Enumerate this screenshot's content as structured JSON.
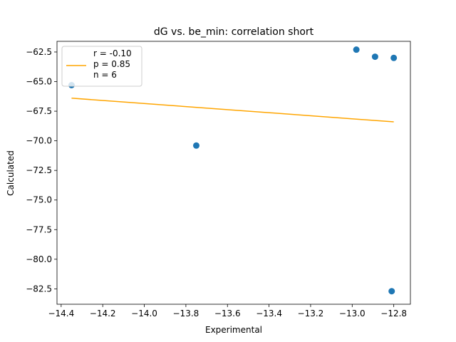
{
  "chart_data": {
    "type": "scatter",
    "title": "dG vs. be_min: correlation short",
    "xlabel": "Experimental",
    "ylabel": "Calculated",
    "xlim": [
      -14.42,
      -12.72
    ],
    "ylim": [
      -83.8,
      -61.6
    ],
    "xticks": [
      -14.4,
      -14.2,
      -14.0,
      -13.8,
      -13.6,
      -13.4,
      -13.2,
      -13.0,
      -12.8
    ],
    "xtick_labels": [
      "−14.4",
      "−14.2",
      "−14.0",
      "−13.8",
      "−13.6",
      "−13.4",
      "−13.2",
      "−13.0",
      "−12.8"
    ],
    "yticks": [
      -62.5,
      -65.0,
      -67.5,
      -70.0,
      -72.5,
      -75.0,
      -77.5,
      -80.0,
      -82.5
    ],
    "ytick_labels": [
      "−62.5",
      "−65.0",
      "−67.5",
      "−70.0",
      "−72.5",
      "−75.0",
      "−77.5",
      "−80.0",
      "−82.5"
    ],
    "points": [
      {
        "x": -14.35,
        "y": -65.3
      },
      {
        "x": -13.75,
        "y": -70.4
      },
      {
        "x": -12.98,
        "y": -62.3
      },
      {
        "x": -12.89,
        "y": -62.9
      },
      {
        "x": -12.8,
        "y": -63.0
      },
      {
        "x": -12.81,
        "y": -82.7
      }
    ],
    "fit_line": {
      "x": [
        -14.35,
        -12.8
      ],
      "y": [
        -66.4,
        -68.4
      ]
    },
    "legend": {
      "placement": "upper-left",
      "lines": [
        "r = -0.10",
        "p = 0.85",
        "n = 6"
      ]
    },
    "grid": false,
    "colors": {
      "points": "#1f77b4",
      "fit": "#ffa500"
    }
  }
}
